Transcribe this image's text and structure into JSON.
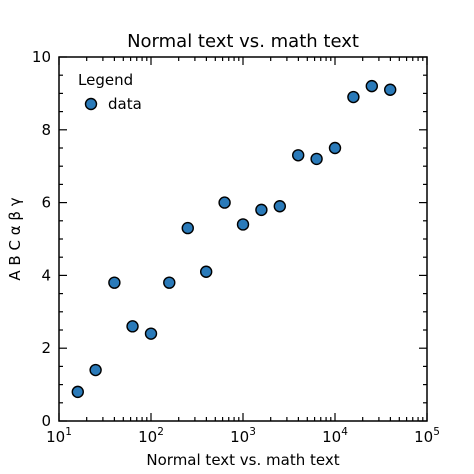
{
  "chart_data": {
    "type": "scatter",
    "title": "Normal text vs. math text",
    "xlabel": "Normal text vs. math text",
    "ylabel": "A B C α β γ",
    "xscale": "log",
    "xlim": [
      10,
      100000
    ],
    "ylim": [
      0,
      10
    ],
    "x_ticks": [
      {
        "base": "10",
        "exp": "1"
      },
      {
        "base": "10",
        "exp": "2"
      },
      {
        "base": "10",
        "exp": "3"
      },
      {
        "base": "10",
        "exp": "4"
      },
      {
        "base": "10",
        "exp": "5"
      }
    ],
    "y_ticks": [
      "0",
      "2",
      "4",
      "6",
      "8",
      "10"
    ],
    "grid": false,
    "legend": {
      "title": "Legend",
      "position": "top-left",
      "entries": [
        "data"
      ]
    },
    "series": [
      {
        "name": "data",
        "color": "#2a7ab9",
        "x": [
          16,
          25,
          40,
          63,
          100,
          158,
          251,
          398,
          631,
          1000,
          1585,
          2512,
          3981,
          6310,
          10000,
          15849,
          25119,
          39811
        ],
        "y": [
          0.8,
          1.4,
          3.8,
          2.6,
          2.4,
          3.8,
          5.3,
          4.1,
          6.0,
          5.4,
          5.8,
          5.9,
          7.3,
          7.2,
          7.5,
          8.9,
          9.2,
          9.1
        ]
      }
    ]
  }
}
